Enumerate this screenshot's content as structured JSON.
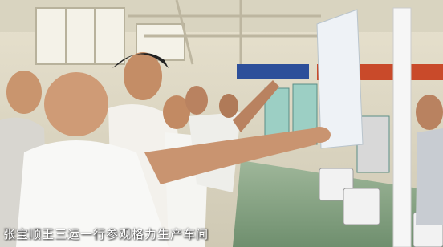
{
  "caption": "张宝顺王三运一行参观格力生产车间"
}
